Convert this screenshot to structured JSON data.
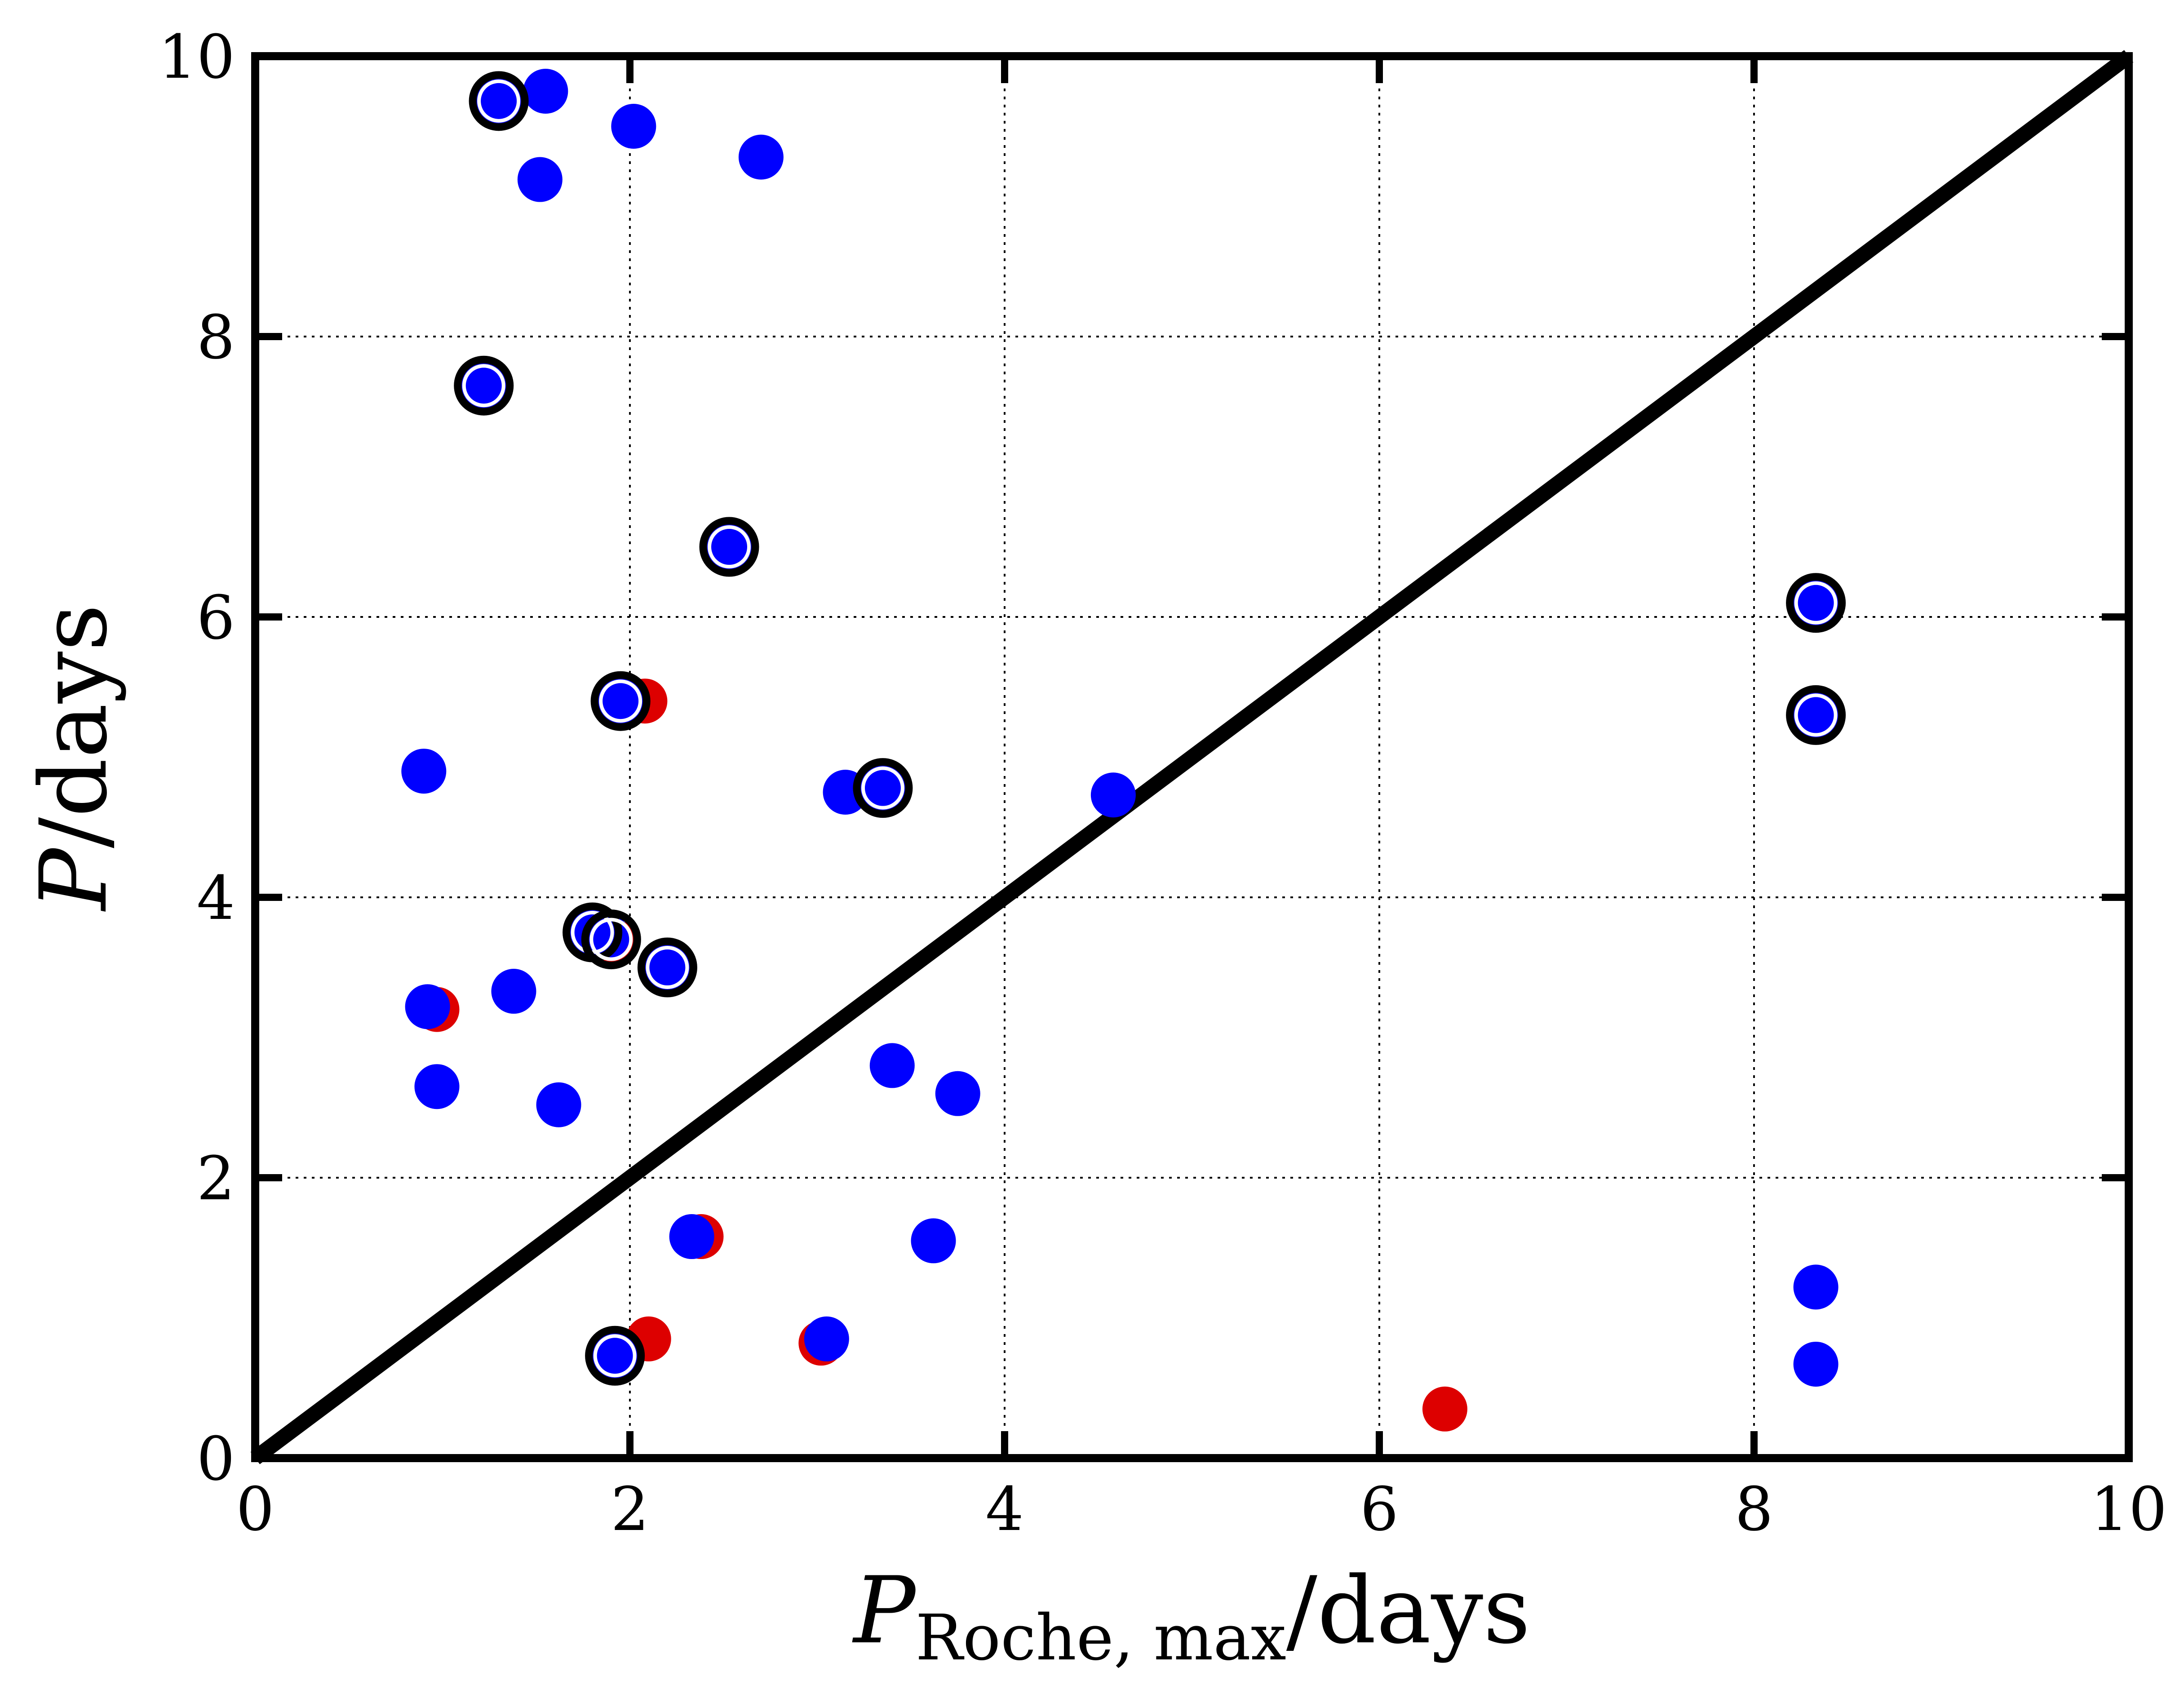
{
  "chart_data": {
    "type": "scatter",
    "xlabel": {
      "main": "P",
      "sub": "Roche, max",
      "unit": "/days"
    },
    "ylabel": {
      "main": "P",
      "unit": "/days"
    },
    "xlim": [
      0,
      10
    ],
    "ylim": [
      0,
      10
    ],
    "xticks": [
      "0",
      "2",
      "4",
      "6",
      "8",
      "10"
    ],
    "yticks": [
      "0",
      "2",
      "4",
      "6",
      "8",
      "10"
    ],
    "grid": true,
    "reference_line": {
      "x": [
        0,
        10
      ],
      "y": [
        0,
        10
      ],
      "color": "#000000"
    },
    "series": [
      {
        "color": "#dd0000",
        "points": [
          [
            2.08,
            5.4
          ],
          [
            0.97,
            3.2
          ],
          [
            2.38,
            1.58
          ],
          [
            2.1,
            0.85
          ],
          [
            3.02,
            0.82
          ],
          [
            6.35,
            0.35
          ],
          [
            1.92,
            3.68
          ],
          [
            2.22,
            3.5
          ]
        ]
      },
      {
        "color": "#0000ff",
        "points": [
          [
            1.55,
            9.75
          ],
          [
            1.3,
            9.68
          ],
          [
            1.52,
            9.12
          ],
          [
            2.02,
            9.5
          ],
          [
            2.7,
            9.28
          ],
          [
            1.22,
            7.65
          ],
          [
            2.53,
            6.5
          ],
          [
            1.95,
            5.4
          ],
          [
            0.9,
            4.9
          ],
          [
            3.15,
            4.75
          ],
          [
            3.35,
            4.78
          ],
          [
            4.58,
            4.73
          ],
          [
            1.8,
            3.75
          ],
          [
            1.88,
            3.72
          ],
          [
            2.2,
            3.5
          ],
          [
            0.92,
            3.22
          ],
          [
            1.38,
            3.33
          ],
          [
            0.97,
            2.65
          ],
          [
            1.62,
            2.52
          ],
          [
            3.4,
            2.8
          ],
          [
            3.75,
            2.6
          ],
          [
            2.33,
            1.58
          ],
          [
            3.62,
            1.55
          ],
          [
            3.05,
            0.85
          ],
          [
            1.92,
            0.73
          ],
          [
            8.33,
            6.1
          ],
          [
            8.33,
            5.3
          ],
          [
            8.33,
            1.22
          ],
          [
            8.33,
            0.67
          ]
        ]
      },
      {
        "marker": "ring",
        "color": "#000000",
        "points": [
          [
            1.3,
            9.68
          ],
          [
            1.22,
            7.65
          ],
          [
            2.53,
            6.5
          ],
          [
            1.95,
            5.4
          ],
          [
            3.35,
            4.78
          ],
          [
            1.8,
            3.75
          ],
          [
            1.9,
            3.7
          ],
          [
            2.2,
            3.5
          ],
          [
            1.92,
            0.73
          ],
          [
            8.33,
            6.1
          ],
          [
            8.33,
            5.3
          ]
        ]
      }
    ]
  }
}
